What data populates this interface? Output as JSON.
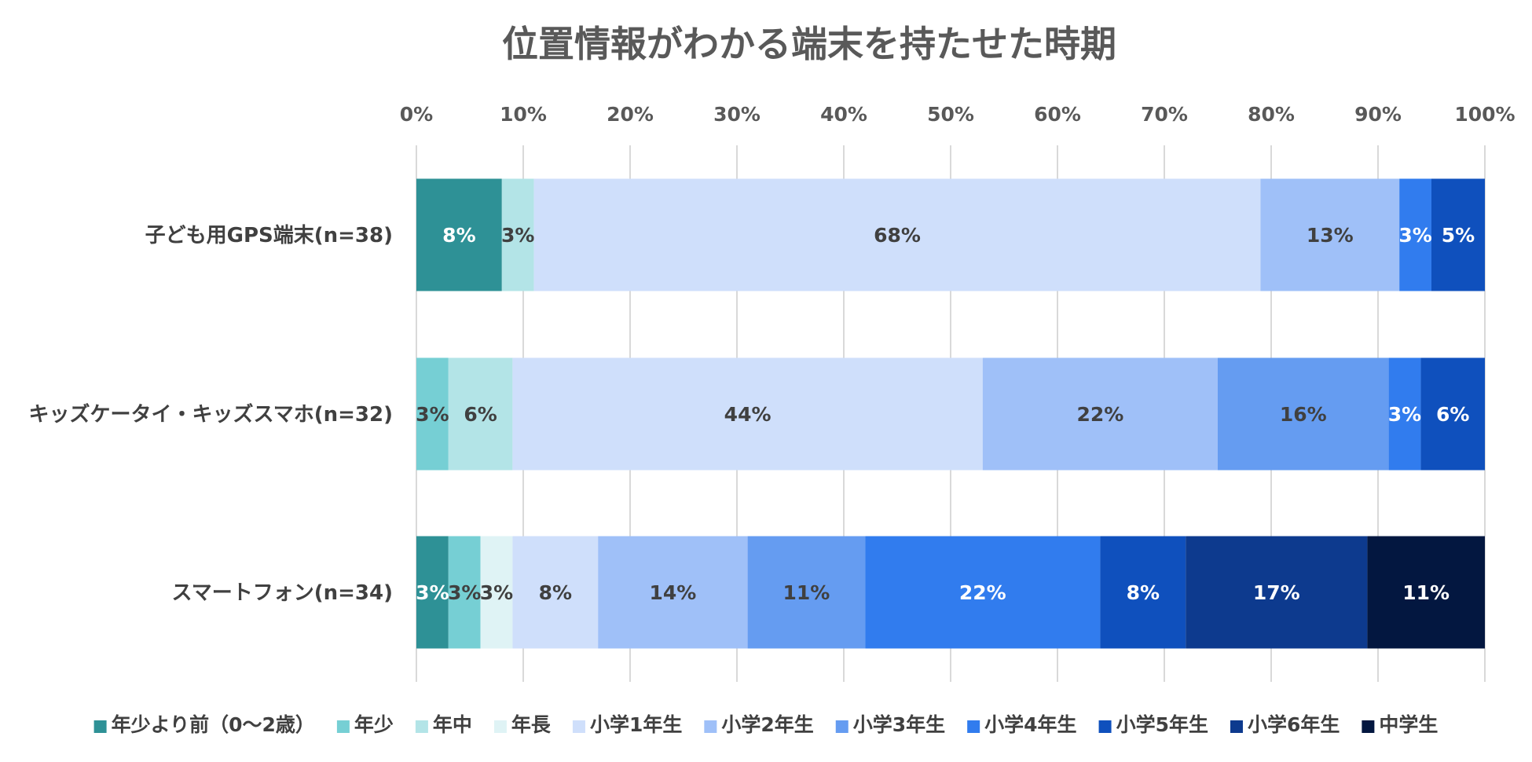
{
  "chart_data": {
    "type": "bar",
    "orientation": "horizontal",
    "stacked": "percent",
    "title": "位置情報がわかる端末を持たせた時期",
    "x_ticks": [
      "0%",
      "10%",
      "20%",
      "30%",
      "40%",
      "50%",
      "60%",
      "70%",
      "80%",
      "90%",
      "100%"
    ],
    "xlim": [
      0,
      100
    ],
    "grid": true,
    "legend_position": "bottom",
    "categories": [
      "子ども用GPS端末(n=38)",
      "キッズケータイ・キッズスマホ(n=32)",
      "スマートフォン(n=34)"
    ],
    "series": [
      {
        "name": "年少より前（0〜2歳）",
        "color": "#2e9196",
        "text_color": "#ffffff",
        "values": [
          8,
          0,
          3
        ],
        "labels": [
          "8%",
          "",
          "3%"
        ]
      },
      {
        "name": "年少",
        "color": "#76cfd4",
        "text_color": "#404040",
        "values": [
          0,
          3,
          3
        ],
        "labels": [
          "",
          "3%",
          "3%"
        ]
      },
      {
        "name": "年中",
        "color": "#b3e4e7",
        "text_color": "#404040",
        "values": [
          3,
          6,
          0
        ],
        "labels": [
          "3%",
          "6%",
          ""
        ]
      },
      {
        "name": "年長",
        "color": "#dff3f5",
        "text_color": "#404040",
        "values": [
          0,
          0,
          3
        ],
        "labels": [
          "",
          "",
          "3%"
        ]
      },
      {
        "name": "小学1年生",
        "color": "#cfdffb",
        "text_color": "#404040",
        "values": [
          68,
          44,
          8
        ],
        "labels": [
          "68%",
          "44%",
          "8%"
        ]
      },
      {
        "name": "小学2年生",
        "color": "#9fc0f8",
        "text_color": "#404040",
        "values": [
          13,
          22,
          14
        ],
        "labels": [
          "13%",
          "22%",
          "14%"
        ]
      },
      {
        "name": "小学3年生",
        "color": "#659cf1",
        "text_color": "#404040",
        "values": [
          0,
          16,
          11
        ],
        "labels": [
          "",
          "16%",
          "11%"
        ]
      },
      {
        "name": "小学4年生",
        "color": "#317cee",
        "text_color": "#ffffff",
        "values": [
          3,
          3,
          22
        ],
        "labels": [
          "3%",
          "3%",
          "22%"
        ]
      },
      {
        "name": "小学5年生",
        "color": "#0f50bd",
        "text_color": "#ffffff",
        "values": [
          5,
          6,
          8
        ],
        "labels": [
          "5%",
          "6%",
          "8%"
        ]
      },
      {
        "name": "小学6年生",
        "color": "#0d3a8e",
        "text_color": "#ffffff",
        "values": [
          0,
          0,
          17
        ],
        "labels": [
          "",
          "",
          "17%"
        ]
      },
      {
        "name": "中学生",
        "color": "#031740",
        "text_color": "#ffffff",
        "values": [
          0,
          0,
          11
        ],
        "labels": [
          "",
          "",
          "11%"
        ]
      }
    ]
  }
}
